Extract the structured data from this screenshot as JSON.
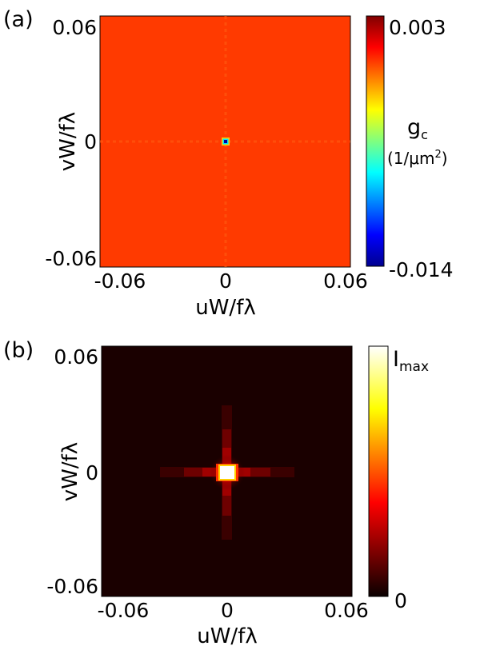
{
  "chart_data": [
    {
      "panel_label": "(a)",
      "type": "heatmap",
      "xlabel": "uW/fλ",
      "ylabel": "vW/fλ",
      "xticks": [
        "-0.06",
        "0",
        "0.06"
      ],
      "yticks": [
        "0.06",
        "0",
        "-0.06"
      ],
      "xlim": [
        -0.06,
        0.06
      ],
      "ylim": [
        -0.06,
        0.06
      ],
      "colorbar": {
        "label_main": "g",
        "label_sub": "c",
        "unit_prefix": "(1/μm",
        "unit_sup": "2",
        "unit_suffix": ")",
        "max_label": "0.003",
        "min_label": "-0.014",
        "range": [
          -0.014,
          0.003
        ],
        "colormap": "jet"
      },
      "background_value": 0.0,
      "peak": {
        "u": 0,
        "v": 0,
        "value": -0.014
      },
      "background_color": "#ff3a00"
    },
    {
      "panel_label": "(b)",
      "type": "heatmap",
      "xlabel": "uW/fλ",
      "ylabel": "vW/fλ",
      "xticks": [
        "-0.06",
        "0",
        "0.06"
      ],
      "yticks": [
        "0.06",
        "0",
        "-0.06"
      ],
      "xlim": [
        -0.06,
        0.06
      ],
      "ylim": [
        -0.06,
        0.06
      ],
      "colorbar": {
        "label_main": "I",
        "label_sub": "max",
        "max_label": "I",
        "min_label": "0",
        "range": [
          0,
          1
        ],
        "colormap": "hot"
      },
      "background_value": 0.0,
      "peak": {
        "u": 0,
        "v": 0,
        "value": 1.0
      },
      "background_color": "#1a0000"
    }
  ]
}
